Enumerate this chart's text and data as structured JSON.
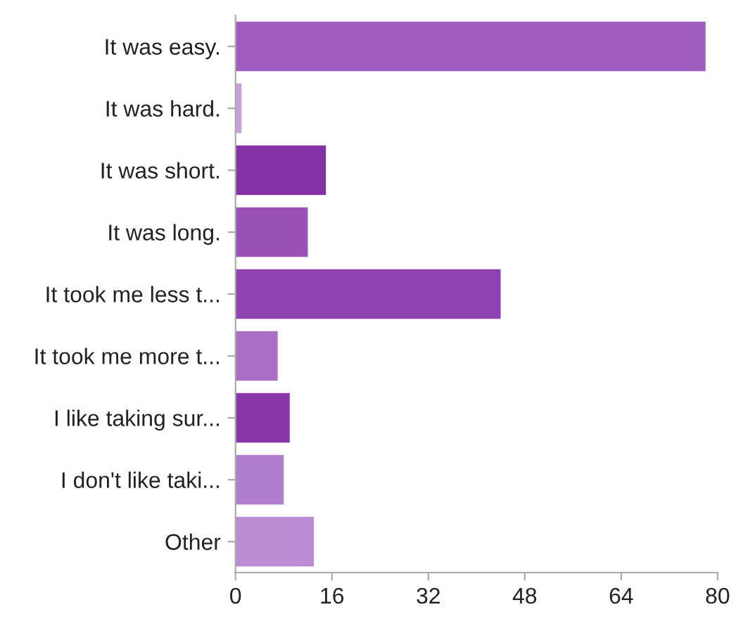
{
  "chart_data": {
    "type": "bar",
    "orientation": "horizontal",
    "categories": [
      "It was easy.",
      "It was hard.",
      "It was short.",
      "It was long.",
      "It took me less t...",
      "It took me more t...",
      "I like taking sur...",
      "I don't like taki...",
      "Other"
    ],
    "values": [
      78,
      1,
      15,
      12,
      44,
      7,
      9,
      8,
      13
    ],
    "colors": [
      "#a05ec0",
      "#c9a0dc",
      "#8433a6",
      "#9a52b8",
      "#8f42b1",
      "#ab6cc8",
      "#8838a8",
      "#b27dcc",
      "#bb8bd3"
    ],
    "xlim": [
      0,
      80
    ],
    "xticks": [
      0,
      16,
      32,
      48,
      64,
      80
    ],
    "grid": false
  }
}
